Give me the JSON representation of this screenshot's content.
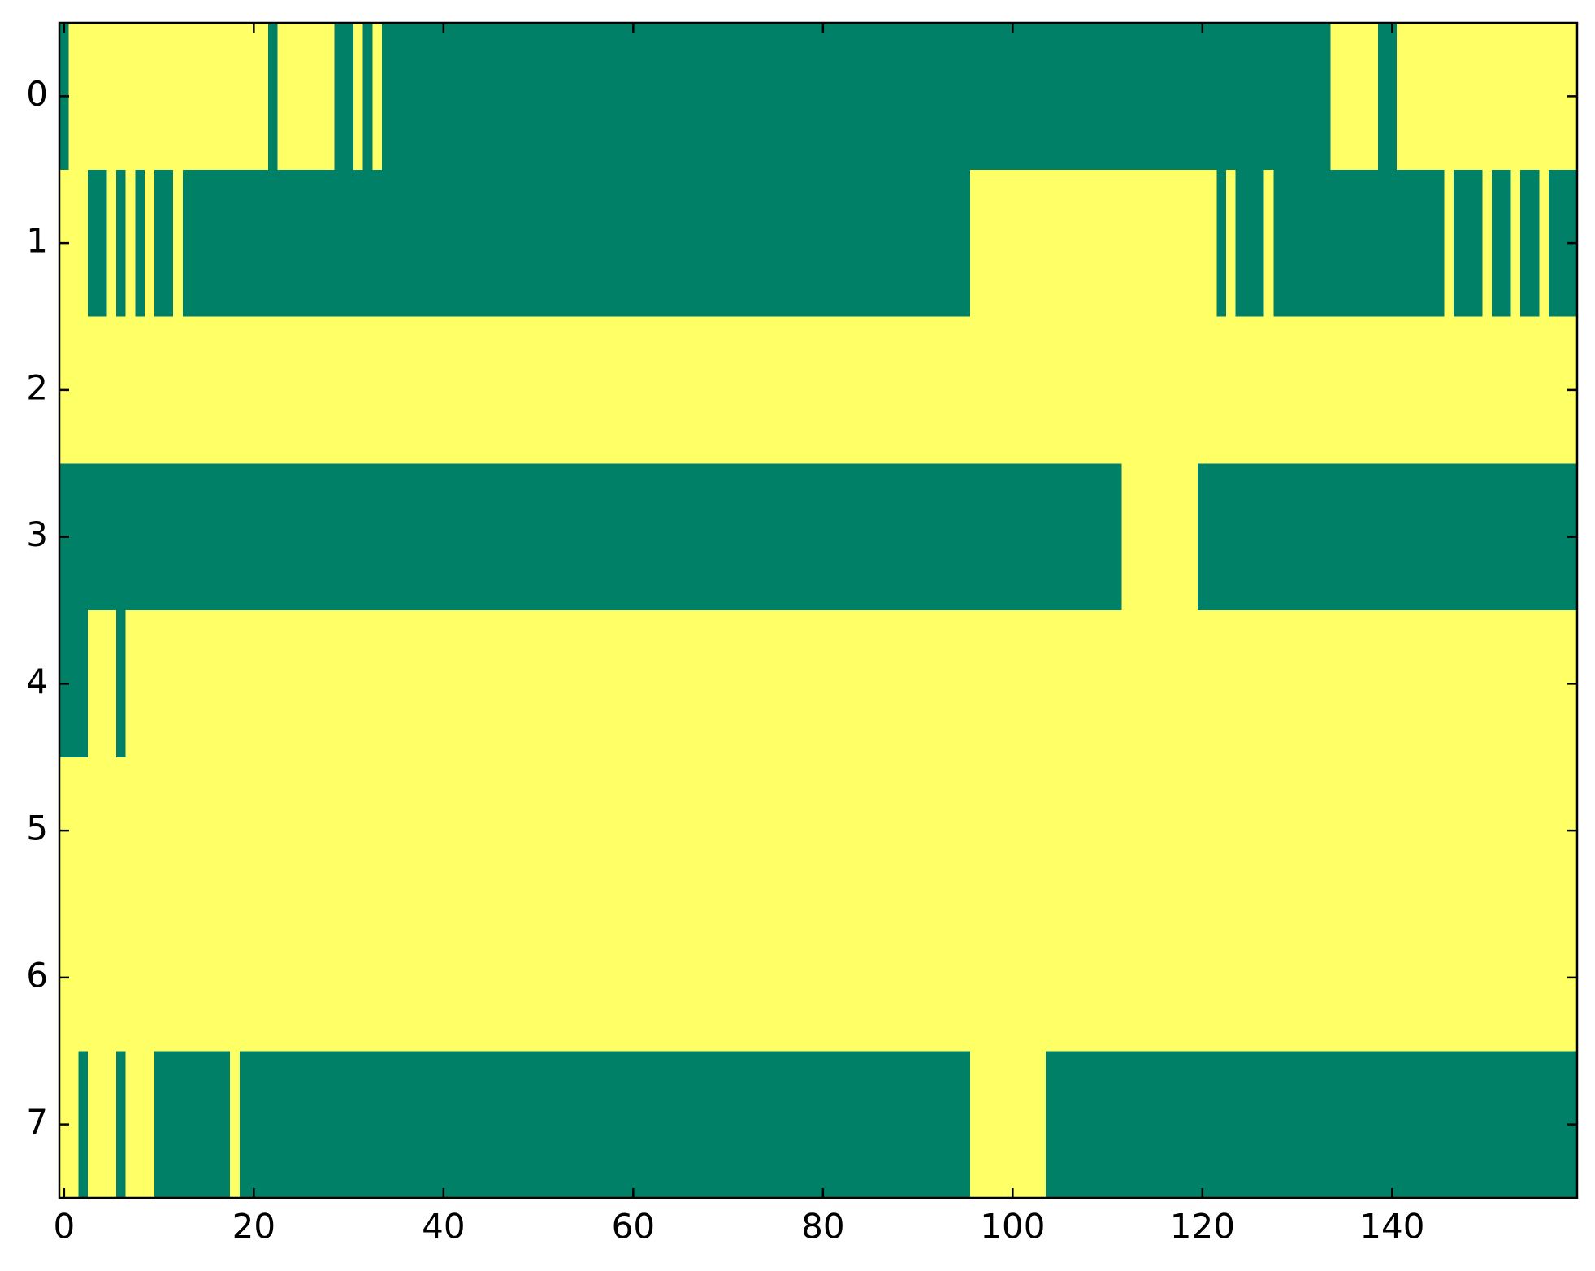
{
  "chart_data": {
    "type": "heatmap",
    "values": [
      [
        0,
        1,
        1,
        1,
        1,
        1,
        1,
        1,
        1,
        1,
        1,
        1,
        1,
        1,
        1,
        1,
        1,
        1,
        1,
        1,
        1,
        1,
        0,
        1,
        1,
        1,
        1,
        1,
        1,
        0,
        0,
        1,
        0,
        1,
        0,
        0,
        0,
        0,
        0,
        0,
        0,
        0,
        0,
        0,
        0,
        0,
        0,
        0,
        0,
        0,
        0,
        0,
        0,
        0,
        0,
        0,
        0,
        0,
        0,
        0,
        0,
        0,
        0,
        0,
        0,
        0,
        0,
        0,
        0,
        0,
        0,
        0,
        0,
        0,
        0,
        0,
        0,
        0,
        0,
        0,
        0,
        0,
        0,
        0,
        0,
        0,
        0,
        0,
        0,
        0,
        0,
        0,
        0,
        0,
        0,
        0,
        0,
        0,
        0,
        0,
        0,
        0,
        0,
        0,
        0,
        0,
        0,
        0,
        0,
        0,
        0,
        0,
        0,
        0,
        0,
        0,
        0,
        0,
        0,
        0,
        0,
        0,
        0,
        0,
        0,
        0,
        0,
        0,
        0,
        0,
        0,
        0,
        0,
        0,
        1,
        1,
        1,
        1,
        1,
        0,
        0,
        1,
        1,
        1,
        1,
        1,
        1,
        1,
        1,
        1,
        1,
        1,
        1,
        1,
        1,
        1,
        1,
        1,
        1,
        1
      ],
      [
        1,
        1,
        1,
        0,
        0,
        1,
        0,
        1,
        0,
        1,
        0,
        0,
        1,
        0,
        0,
        0,
        0,
        0,
        0,
        0,
        0,
        0,
        0,
        0,
        0,
        0,
        0,
        0,
        0,
        0,
        0,
        0,
        0,
        0,
        0,
        0,
        0,
        0,
        0,
        0,
        0,
        0,
        0,
        0,
        0,
        0,
        0,
        0,
        0,
        0,
        0,
        0,
        0,
        0,
        0,
        0,
        0,
        0,
        0,
        0,
        0,
        0,
        0,
        0,
        0,
        0,
        0,
        0,
        0,
        0,
        0,
        0,
        0,
        0,
        0,
        0,
        0,
        0,
        0,
        0,
        0,
        0,
        0,
        0,
        0,
        0,
        0,
        0,
        0,
        0,
        0,
        0,
        0,
        0,
        0,
        0,
        1,
        1,
        1,
        1,
        1,
        1,
        1,
        1,
        1,
        1,
        1,
        1,
        1,
        1,
        1,
        1,
        1,
        1,
        1,
        1,
        1,
        1,
        1,
        1,
        1,
        1,
        0,
        1,
        0,
        0,
        0,
        1,
        0,
        0,
        0,
        0,
        0,
        0,
        0,
        0,
        0,
        0,
        0,
        0,
        0,
        0,
        0,
        0,
        0,
        0,
        1,
        0,
        0,
        0,
        1,
        0,
        0,
        1,
        0,
        0,
        1,
        0,
        0,
        0
      ],
      [
        1,
        1,
        1,
        1,
        1,
        1,
        1,
        1,
        1,
        1,
        1,
        1,
        1,
        1,
        1,
        1,
        1,
        1,
        1,
        1,
        1,
        1,
        1,
        1,
        1,
        1,
        1,
        1,
        1,
        1,
        1,
        1,
        1,
        1,
        1,
        1,
        1,
        1,
        1,
        1,
        1,
        1,
        1,
        1,
        1,
        1,
        1,
        1,
        1,
        1,
        1,
        1,
        1,
        1,
        1,
        1,
        1,
        1,
        1,
        1,
        1,
        1,
        1,
        1,
        1,
        1,
        1,
        1,
        1,
        1,
        1,
        1,
        1,
        1,
        1,
        1,
        1,
        1,
        1,
        1,
        1,
        1,
        1,
        1,
        1,
        1,
        1,
        1,
        1,
        1,
        1,
        1,
        1,
        1,
        1,
        1,
        1,
        1,
        1,
        1,
        1,
        1,
        1,
        1,
        1,
        1,
        1,
        1,
        1,
        1,
        1,
        1,
        1,
        1,
        1,
        1,
        1,
        1,
        1,
        1,
        1,
        1,
        1,
        1,
        1,
        1,
        1,
        1,
        1,
        1,
        1,
        1,
        1,
        1,
        1,
        1,
        1,
        1,
        1,
        1,
        1,
        1,
        1,
        1,
        1,
        1,
        1,
        1,
        1,
        1,
        1,
        1,
        1,
        1,
        1,
        1,
        1,
        1,
        1,
        1
      ],
      [
        0,
        0,
        0,
        0,
        0,
        0,
        0,
        0,
        0,
        0,
        0,
        0,
        0,
        0,
        0,
        0,
        0,
        0,
        0,
        0,
        0,
        0,
        0,
        0,
        0,
        0,
        0,
        0,
        0,
        0,
        0,
        0,
        0,
        0,
        0,
        0,
        0,
        0,
        0,
        0,
        0,
        0,
        0,
        0,
        0,
        0,
        0,
        0,
        0,
        0,
        0,
        0,
        0,
        0,
        0,
        0,
        0,
        0,
        0,
        0,
        0,
        0,
        0,
        0,
        0,
        0,
        0,
        0,
        0,
        0,
        0,
        0,
        0,
        0,
        0,
        0,
        0,
        0,
        0,
        0,
        0,
        0,
        0,
        0,
        0,
        0,
        0,
        0,
        0,
        0,
        0,
        0,
        0,
        0,
        0,
        0,
        0,
        0,
        0,
        0,
        0,
        0,
        0,
        0,
        0,
        0,
        0,
        0,
        0,
        0,
        0,
        0,
        1,
        1,
        1,
        1,
        1,
        1,
        1,
        1,
        0,
        0,
        0,
        0,
        0,
        0,
        0,
        0,
        0,
        0,
        0,
        0,
        0,
        0,
        0,
        0,
        0,
        0,
        0,
        0,
        0,
        0,
        0,
        0,
        0,
        0,
        0,
        0,
        0,
        0,
        0,
        0,
        0,
        0,
        0,
        0,
        0,
        0,
        0,
        0
      ],
      [
        0,
        0,
        0,
        1,
        1,
        1,
        0,
        1,
        1,
        1,
        1,
        1,
        1,
        1,
        1,
        1,
        1,
        1,
        1,
        1,
        1,
        1,
        1,
        1,
        1,
        1,
        1,
        1,
        1,
        1,
        1,
        1,
        1,
        1,
        1,
        1,
        1,
        1,
        1,
        1,
        1,
        1,
        1,
        1,
        1,
        1,
        1,
        1,
        1,
        1,
        1,
        1,
        1,
        1,
        1,
        1,
        1,
        1,
        1,
        1,
        1,
        1,
        1,
        1,
        1,
        1,
        1,
        1,
        1,
        1,
        1,
        1,
        1,
        1,
        1,
        1,
        1,
        1,
        1,
        1,
        1,
        1,
        1,
        1,
        1,
        1,
        1,
        1,
        1,
        1,
        1,
        1,
        1,
        1,
        1,
        1,
        1,
        1,
        1,
        1,
        1,
        1,
        1,
        1,
        1,
        1,
        1,
        1,
        1,
        1,
        1,
        1,
        1,
        1,
        1,
        1,
        1,
        1,
        1,
        1,
        1,
        1,
        1,
        1,
        1,
        1,
        1,
        1,
        1,
        1,
        1,
        1,
        1,
        1,
        1,
        1,
        1,
        1,
        1,
        1,
        1,
        1,
        1,
        1,
        1,
        1,
        1,
        1,
        1,
        1,
        1,
        1,
        1,
        1,
        1,
        1,
        1,
        1,
        1,
        1
      ],
      [
        1,
        1,
        1,
        1,
        1,
        1,
        1,
        1,
        1,
        1,
        1,
        1,
        1,
        1,
        1,
        1,
        1,
        1,
        1,
        1,
        1,
        1,
        1,
        1,
        1,
        1,
        1,
        1,
        1,
        1,
        1,
        1,
        1,
        1,
        1,
        1,
        1,
        1,
        1,
        1,
        1,
        1,
        1,
        1,
        1,
        1,
        1,
        1,
        1,
        1,
        1,
        1,
        1,
        1,
        1,
        1,
        1,
        1,
        1,
        1,
        1,
        1,
        1,
        1,
        1,
        1,
        1,
        1,
        1,
        1,
        1,
        1,
        1,
        1,
        1,
        1,
        1,
        1,
        1,
        1,
        1,
        1,
        1,
        1,
        1,
        1,
        1,
        1,
        1,
        1,
        1,
        1,
        1,
        1,
        1,
        1,
        1,
        1,
        1,
        1,
        1,
        1,
        1,
        1,
        1,
        1,
        1,
        1,
        1,
        1,
        1,
        1,
        1,
        1,
        1,
        1,
        1,
        1,
        1,
        1,
        1,
        1,
        1,
        1,
        1,
        1,
        1,
        1,
        1,
        1,
        1,
        1,
        1,
        1,
        1,
        1,
        1,
        1,
        1,
        1,
        1,
        1,
        1,
        1,
        1,
        1,
        1,
        1,
        1,
        1,
        1,
        1,
        1,
        1,
        1,
        1,
        1,
        1,
        1,
        1
      ],
      [
        1,
        1,
        1,
        1,
        1,
        1,
        1,
        1,
        1,
        1,
        1,
        1,
        1,
        1,
        1,
        1,
        1,
        1,
        1,
        1,
        1,
        1,
        1,
        1,
        1,
        1,
        1,
        1,
        1,
        1,
        1,
        1,
        1,
        1,
        1,
        1,
        1,
        1,
        1,
        1,
        1,
        1,
        1,
        1,
        1,
        1,
        1,
        1,
        1,
        1,
        1,
        1,
        1,
        1,
        1,
        1,
        1,
        1,
        1,
        1,
        1,
        1,
        1,
        1,
        1,
        1,
        1,
        1,
        1,
        1,
        1,
        1,
        1,
        1,
        1,
        1,
        1,
        1,
        1,
        1,
        1,
        1,
        1,
        1,
        1,
        1,
        1,
        1,
        1,
        1,
        1,
        1,
        1,
        1,
        1,
        1,
        1,
        1,
        1,
        1,
        1,
        1,
        1,
        1,
        1,
        1,
        1,
        1,
        1,
        1,
        1,
        1,
        1,
        1,
        1,
        1,
        1,
        1,
        1,
        1,
        1,
        1,
        1,
        1,
        1,
        1,
        1,
        1,
        1,
        1,
        1,
        1,
        1,
        1,
        1,
        1,
        1,
        1,
        1,
        1,
        1,
        1,
        1,
        1,
        1,
        1,
        1,
        1,
        1,
        1,
        1,
        1,
        1,
        1,
        1,
        1,
        1,
        1,
        1,
        1
      ],
      [
        1,
        1,
        0,
        1,
        1,
        1,
        0,
        1,
        1,
        1,
        0,
        0,
        0,
        0,
        0,
        0,
        0,
        0,
        1,
        0,
        0,
        0,
        0,
        0,
        0,
        0,
        0,
        0,
        0,
        0,
        0,
        0,
        0,
        0,
        0,
        0,
        0,
        0,
        0,
        0,
        0,
        0,
        0,
        0,
        0,
        0,
        0,
        0,
        0,
        0,
        0,
        0,
        0,
        0,
        0,
        0,
        0,
        0,
        0,
        0,
        0,
        0,
        0,
        0,
        0,
        0,
        0,
        0,
        0,
        0,
        0,
        0,
        0,
        0,
        0,
        0,
        0,
        0,
        0,
        0,
        0,
        0,
        0,
        0,
        0,
        0,
        0,
        0,
        0,
        0,
        0,
        0,
        0,
        0,
        0,
        0,
        1,
        1,
        1,
        1,
        1,
        1,
        1,
        1,
        0,
        0,
        0,
        0,
        0,
        0,
        0,
        0,
        0,
        0,
        0,
        0,
        0,
        0,
        0,
        0,
        0,
        0,
        0,
        0,
        0,
        0,
        0,
        0,
        0,
        0,
        0,
        0,
        0,
        0,
        0,
        0,
        0,
        0,
        0,
        0,
        0,
        0,
        0,
        0,
        0,
        0,
        0,
        0,
        0,
        0,
        0,
        0,
        0,
        0,
        0,
        0,
        0,
        0,
        0,
        0
      ]
    ],
    "colors": [
      "#008066",
      "#ffff66"
    ],
    "xlim": [
      -0.5,
      159.5
    ],
    "ylim": [
      7.5,
      -0.5
    ],
    "xticks": [
      0,
      20,
      40,
      60,
      80,
      100,
      120,
      140
    ],
    "yticks": [
      0,
      1,
      2,
      3,
      4,
      5,
      6,
      7
    ]
  }
}
